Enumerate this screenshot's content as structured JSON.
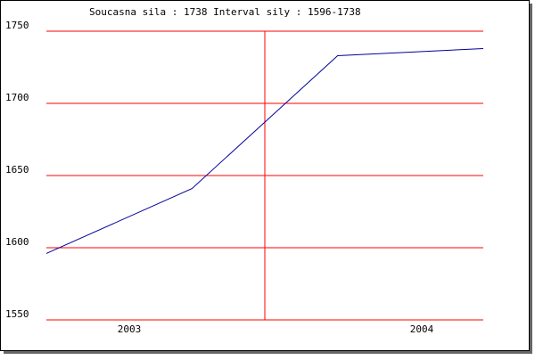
{
  "chart_data": {
    "type": "line",
    "title": "Soucasna sila : 1738  Interval sily : 1596-1738",
    "categories": [
      null,
      null,
      null,
      null
    ],
    "series": [
      {
        "color": "#000099",
        "values": [
          1596,
          1641,
          1733,
          1738
        ]
      }
    ],
    "period_labels": [
      "2003",
      "2004"
    ],
    "ylim": [
      1550,
      1750
    ],
    "yticks": [
      1550,
      1600,
      1650,
      1700,
      1750
    ],
    "grid": true,
    "grid_color": "#ff0000"
  }
}
